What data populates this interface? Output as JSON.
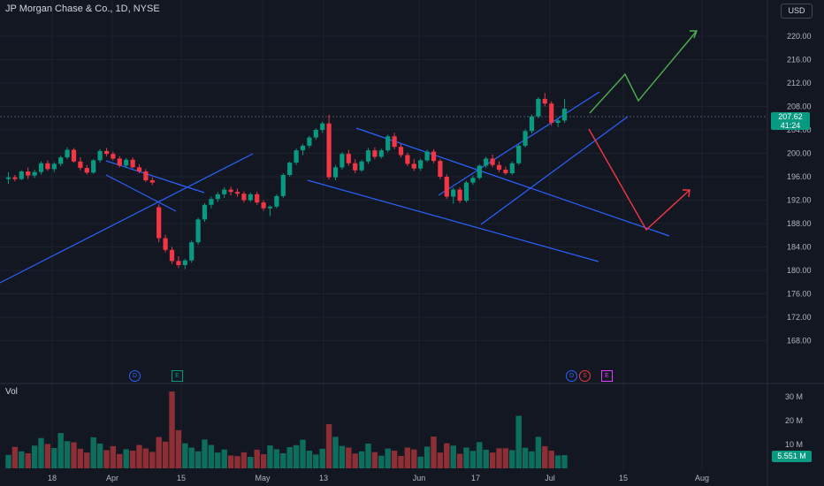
{
  "header": {
    "symbol_title": "JP Morgan Chase & Co., 1D, NYSE",
    "currency": "USD"
  },
  "price_tag": {
    "price": "207.62",
    "countdown": "41:24"
  },
  "volume_pane": {
    "label": "Vol",
    "last_volume": "5.551 M"
  },
  "markers": [
    {
      "kind": "circle",
      "label": "D"
    },
    {
      "kind": "pentagon",
      "label": "E"
    },
    {
      "kind": "circle",
      "label": "D"
    },
    {
      "kind": "split",
      "label": "S"
    },
    {
      "kind": "pentagon-purple",
      "label": "E"
    }
  ],
  "colors": {
    "background": "#131722",
    "up": "#089981",
    "down": "#f23645",
    "trendline": "#2962ff",
    "arrow_up": "#4caf50",
    "arrow_down": "#f23645",
    "grid": "#1e222d"
  },
  "chart_data": [
    {
      "type": "candlestick",
      "price_axis": {
        "ticks": [
          "220.00",
          "216.00",
          "212.00",
          "208.00",
          "204.00",
          "200.00",
          "196.00",
          "192.00",
          "188.00",
          "184.00",
          "180.00",
          "176.00",
          "172.00",
          "168.00"
        ],
        "ylim": [
          167,
          225
        ]
      },
      "time_axis": {
        "ticks": [
          "18",
          "Apr",
          "15",
          "May",
          "13",
          "Jun",
          "17",
          "Jul",
          "15",
          "Aug"
        ]
      },
      "last_price": 207.62,
      "candles": [
        [
          195.6,
          196.8,
          194.8,
          195.9
        ],
        [
          195.9,
          196.3,
          195.2,
          195.6
        ],
        [
          195.6,
          197.1,
          195.4,
          196.9
        ],
        [
          196.9,
          197.6,
          195.6,
          196.2
        ],
        [
          196.2,
          197.2,
          195.8,
          196.8
        ],
        [
          196.8,
          198.6,
          196.4,
          198.3
        ],
        [
          198.3,
          198.8,
          197.0,
          197.3
        ],
        [
          197.3,
          198.5,
          196.8,
          198.2
        ],
        [
          198.2,
          199.6,
          197.8,
          199.3
        ],
        [
          199.3,
          201.0,
          199.0,
          200.6
        ],
        [
          200.6,
          200.9,
          198.4,
          198.6
        ],
        [
          198.6,
          199.3,
          197.1,
          197.5
        ],
        [
          197.5,
          198.0,
          196.4,
          196.7
        ],
        [
          196.7,
          199.0,
          196.5,
          198.8
        ],
        [
          198.8,
          200.7,
          198.4,
          200.4
        ],
        [
          200.4,
          200.9,
          199.5,
          199.9
        ],
        [
          199.9,
          200.3,
          198.8,
          199.1
        ],
        [
          199.1,
          199.5,
          197.6,
          197.9
        ],
        [
          197.9,
          199.2,
          197.5,
          198.9
        ],
        [
          198.9,
          199.3,
          197.4,
          197.6
        ],
        [
          197.6,
          198.1,
          196.6,
          196.9
        ],
        [
          196.9,
          197.3,
          195.1,
          195.4
        ],
        [
          195.4,
          195.9,
          194.6,
          195.0
        ],
        [
          190.8,
          191.3,
          184.8,
          185.5
        ],
        [
          185.5,
          186.1,
          183.1,
          183.5
        ],
        [
          183.5,
          184.0,
          181.1,
          181.6
        ],
        [
          181.6,
          182.4,
          180.4,
          180.9
        ],
        [
          180.9,
          182.0,
          180.2,
          181.7
        ],
        [
          181.7,
          185.1,
          181.3,
          184.8
        ],
        [
          184.8,
          189.0,
          184.4,
          188.7
        ],
        [
          188.7,
          191.5,
          188.3,
          191.2
        ],
        [
          191.2,
          192.6,
          190.6,
          192.2
        ],
        [
          192.2,
          193.4,
          191.7,
          193.0
        ],
        [
          193.0,
          194.2,
          192.4,
          193.8
        ],
        [
          193.8,
          194.3,
          192.8,
          193.4
        ],
        [
          193.4,
          194.0,
          192.6,
          193.1
        ],
        [
          193.1,
          193.5,
          191.6,
          192.0
        ],
        [
          192.0,
          193.3,
          191.7,
          193.0
        ],
        [
          193.0,
          193.4,
          191.2,
          191.6
        ],
        [
          191.6,
          192.0,
          190.2,
          190.6
        ],
        [
          190.6,
          191.1,
          189.3,
          190.9
        ],
        [
          190.9,
          193.0,
          190.6,
          192.7
        ],
        [
          192.7,
          196.6,
          192.4,
          196.3
        ],
        [
          196.3,
          198.6,
          196.0,
          198.4
        ],
        [
          198.4,
          200.8,
          198.0,
          200.5
        ],
        [
          200.5,
          201.6,
          199.7,
          201.3
        ],
        [
          201.3,
          203.0,
          200.9,
          202.7
        ],
        [
          202.7,
          204.3,
          202.3,
          204.0
        ],
        [
          204.0,
          205.4,
          203.5,
          205.1
        ],
        [
          205.1,
          206.6,
          195.5,
          195.9
        ],
        [
          195.9,
          198.0,
          195.4,
          197.6
        ],
        [
          197.6,
          200.2,
          197.2,
          199.9
        ],
        [
          199.9,
          200.6,
          197.9,
          198.3
        ],
        [
          198.3,
          199.0,
          196.6,
          197.1
        ],
        [
          197.1,
          198.9,
          196.8,
          198.6
        ],
        [
          198.6,
          200.9,
          198.2,
          200.5
        ],
        [
          200.5,
          201.0,
          199.0,
          199.4
        ],
        [
          199.4,
          200.8,
          199.1,
          200.5
        ],
        [
          200.5,
          203.2,
          200.2,
          202.9
        ],
        [
          202.9,
          203.5,
          200.7,
          201.1
        ],
        [
          201.1,
          201.6,
          199.3,
          199.7
        ],
        [
          199.7,
          200.1,
          197.8,
          198.2
        ],
        [
          198.2,
          199.0,
          197.0,
          197.4
        ],
        [
          197.4,
          199.1,
          197.0,
          198.8
        ],
        [
          198.8,
          200.6,
          198.5,
          200.3
        ],
        [
          200.3,
          200.7,
          198.3,
          198.7
        ],
        [
          198.7,
          199.0,
          195.6,
          196.0
        ],
        [
          196.0,
          196.4,
          192.2,
          192.6
        ],
        [
          192.6,
          194.1,
          191.4,
          193.8
        ],
        [
          193.8,
          194.2,
          191.5,
          191.9
        ],
        [
          191.9,
          195.3,
          191.6,
          195.0
        ],
        [
          195.0,
          196.2,
          194.6,
          195.8
        ],
        [
          195.8,
          198.1,
          195.5,
          197.9
        ],
        [
          197.9,
          199.4,
          197.5,
          199.1
        ],
        [
          199.1,
          199.8,
          197.6,
          198.0
        ],
        [
          198.0,
          198.6,
          196.8,
          197.2
        ],
        [
          197.2,
          197.7,
          196.3,
          196.6
        ],
        [
          196.6,
          198.6,
          196.3,
          198.3
        ],
        [
          198.3,
          201.6,
          198.0,
          201.3
        ],
        [
          201.3,
          204.1,
          201.0,
          203.8
        ],
        [
          203.8,
          206.6,
          203.4,
          206.3
        ],
        [
          206.3,
          209.6,
          206.0,
          209.3
        ],
        [
          209.3,
          210.3,
          208.0,
          208.5
        ],
        [
          208.5,
          208.9,
          204.7,
          205.2
        ],
        [
          205.2,
          206.0,
          204.5,
          205.6
        ],
        [
          205.6,
          209.3,
          205.2,
          207.62
        ]
      ],
      "volume_axis": {
        "ticks": [
          "30 M",
          "20 M",
          "10 M"
        ]
      },
      "volumes": [
        5.6,
        9.0,
        7.1,
        6.3,
        9.5,
        12.7,
        10.2,
        8.5,
        14.8,
        11.4,
        10.9,
        8.2,
        6.6,
        13.0,
        10.4,
        7.6,
        9.3,
        6.0,
        8.0,
        7.4,
        9.8,
        8.3,
        6.9,
        13.1,
        11.2,
        32.2,
        16.0,
        10.5,
        8.7,
        7.1,
        12.1,
        9.8,
        6.6,
        7.9,
        5.4,
        5.1,
        6.7,
        4.8,
        7.8,
        5.9,
        9.6,
        8.0,
        6.3,
        8.9,
        9.7,
        12.0,
        7.4,
        5.8,
        8.2,
        18.5,
        13.2,
        9.4,
        8.7,
        6.2,
        7.1,
        10.4,
        6.8,
        5.3,
        8.3,
        7.4,
        5.2,
        8.7,
        7.9,
        4.9,
        9.1,
        13.3,
        6.6,
        10.5,
        9.5,
        6.1,
        8.7,
        7.3,
        11.0,
        7.8,
        6.6,
        8.4,
        8.4,
        7.6,
        22.0,
        8.6,
        7.1,
        13.2,
        9.3,
        7.4,
        5.4,
        5.551
      ]
    }
  ]
}
